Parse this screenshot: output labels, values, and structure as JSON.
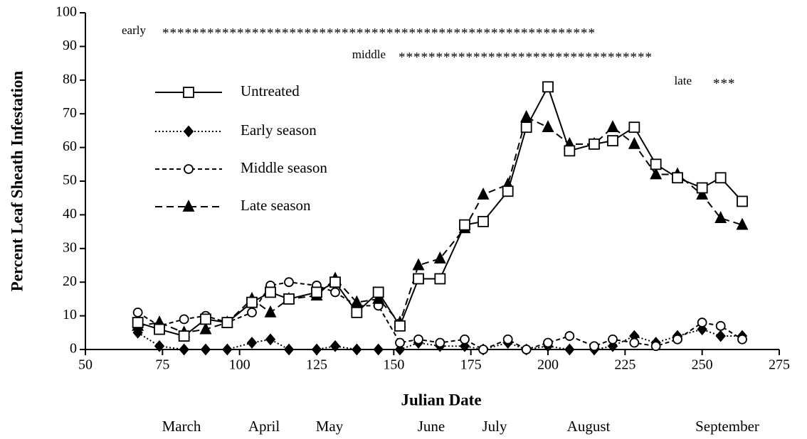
{
  "chart_data": {
    "type": "line",
    "xlabel": "Julian Date",
    "ylabel": "Percent Leaf Sheath Infestation",
    "xlim": [
      50,
      275
    ],
    "xticks": [
      50,
      75,
      100,
      125,
      150,
      175,
      200,
      225,
      250,
      275
    ],
    "ylim": [
      0,
      100
    ],
    "yticks": [
      0,
      10,
      20,
      30,
      40,
      50,
      60,
      70,
      80,
      90,
      100
    ],
    "legend": "upper left",
    "annotations": [
      {
        "label": "early",
        "marks": "**********************************************************"
      },
      {
        "label": "middle",
        "marks": "**********************************"
      },
      {
        "label": "late",
        "marks": "***"
      }
    ],
    "month_labels": [
      "March",
      "April",
      "May",
      "June",
      "July",
      "August",
      "September"
    ],
    "x": [
      67,
      74,
      82,
      89,
      96,
      104,
      110,
      116,
      125,
      131,
      138,
      145,
      152,
      158,
      165,
      173,
      179,
      187,
      193,
      200,
      207,
      215,
      221,
      228,
      235,
      242,
      250,
      256,
      263
    ],
    "series": [
      {
        "name": "Untreated",
        "color": "#000000",
        "marker": "square",
        "dash": "solid",
        "values": [
          8,
          6,
          4,
          9,
          8,
          14,
          17,
          15,
          17,
          20,
          11,
          17,
          7,
          21,
          21,
          37,
          38,
          47,
          66,
          78,
          59,
          61,
          62,
          66,
          55,
          51,
          48,
          51,
          44
        ]
      },
      {
        "name": "Early season",
        "color": "#000000",
        "marker": "diamond",
        "dash": "dotted",
        "values": [
          5,
          1,
          0,
          0,
          0,
          2,
          3,
          0,
          0,
          1,
          0,
          0,
          0,
          2,
          1,
          1,
          0,
          2,
          0,
          1,
          0,
          0,
          1,
          4,
          2,
          4,
          6,
          4,
          4
        ]
      },
      {
        "name": "Middle season",
        "color": "#000000",
        "marker": "circle",
        "dash": "dashed",
        "values": [
          11,
          7,
          9,
          10,
          8,
          11,
          19,
          20,
          19,
          17,
          13,
          13,
          2,
          3,
          2,
          3,
          0,
          3,
          0,
          2,
          4,
          1,
          3,
          2,
          1,
          3,
          8,
          7,
          3
        ]
      },
      {
        "name": "Late season",
        "color": "#000000",
        "marker": "triangle",
        "dash": "longdash",
        "values": [
          7,
          8,
          5,
          6,
          8,
          15,
          11,
          15,
          16,
          21,
          14,
          15,
          8,
          25,
          27,
          36,
          46,
          49,
          69,
          66,
          61,
          61,
          66,
          61,
          52,
          52,
          46,
          39,
          37
        ]
      }
    ]
  }
}
